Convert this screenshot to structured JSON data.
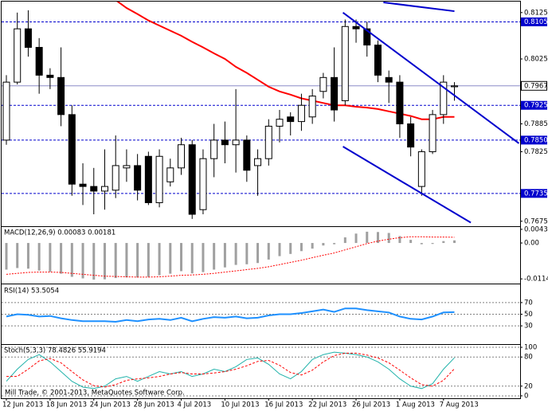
{
  "chart_data": [
    {
      "type": "candlestick",
      "categories": [
        "12 Jun 2013",
        null,
        null,
        null,
        "18 Jun 2013",
        null,
        null,
        null,
        "24 Jun 2013",
        null,
        null,
        null,
        "28 Jun 2013",
        null,
        null,
        null,
        "4 Jul 2013",
        null,
        null,
        null,
        "10 Jul 2013",
        null,
        null,
        null,
        "16 Jul 2013",
        null,
        null,
        null,
        "22 Jul 2013",
        null,
        null,
        null,
        "26 Jul 2013",
        null,
        null,
        null,
        "1 Aug 2013",
        null,
        null,
        null,
        "7 Aug 2013",
        null
      ],
      "open": [
        0.785,
        0.7975,
        0.809,
        0.805,
        0.799,
        0.7985,
        0.7905,
        0.7755,
        0.775,
        0.774,
        0.7742,
        0.779,
        0.7795,
        0.7815,
        0.7715,
        0.776,
        0.779,
        0.784,
        0.77,
        0.781,
        0.785,
        0.784,
        0.785,
        0.7795,
        0.781,
        0.788,
        0.79,
        0.789,
        0.79,
        0.7955,
        0.7985,
        0.7935,
        0.8095,
        0.809,
        0.8055,
        0.7985,
        0.7975,
        0.7885,
        0.775,
        0.7825,
        0.7905,
        0.7965
      ],
      "high": [
        0.799,
        0.8125,
        0.813,
        0.807,
        0.8005,
        0.805,
        0.7925,
        0.78,
        0.779,
        0.783,
        0.786,
        0.783,
        0.782,
        0.7825,
        0.783,
        0.781,
        0.7855,
        0.785,
        0.783,
        0.7885,
        0.789,
        0.796,
        0.786,
        0.783,
        0.7895,
        0.7915,
        0.791,
        0.795,
        0.796,
        0.7995,
        0.805,
        0.811,
        0.811,
        0.8105,
        0.8065,
        0.8,
        0.799,
        0.79,
        0.783,
        0.7915,
        0.799,
        0.7975
      ],
      "low": [
        0.784,
        0.797,
        0.803,
        0.795,
        0.796,
        0.788,
        0.773,
        0.771,
        0.769,
        0.77,
        0.7725,
        0.776,
        0.772,
        0.771,
        0.7705,
        0.775,
        0.7775,
        0.768,
        0.769,
        0.777,
        0.78,
        0.778,
        0.776,
        0.773,
        0.7795,
        0.7845,
        0.786,
        0.787,
        0.7885,
        0.794,
        0.789,
        0.7925,
        0.806,
        0.803,
        0.7975,
        0.793,
        0.7855,
        0.7815,
        0.773,
        0.782,
        0.7885,
        0.7935
      ],
      "close": [
        0.7975,
        0.809,
        0.805,
        0.799,
        0.7985,
        0.7905,
        0.7755,
        0.775,
        0.774,
        0.775,
        0.7795,
        0.7795,
        0.7742,
        0.7715,
        0.7815,
        0.779,
        0.784,
        0.769,
        0.781,
        0.785,
        0.784,
        0.785,
        0.7785,
        0.781,
        0.788,
        0.7895,
        0.789,
        0.7925,
        0.7945,
        0.7985,
        0.7915,
        0.8095,
        0.809,
        0.8055,
        0.799,
        0.7975,
        0.7885,
        0.7835,
        0.7825,
        0.7905,
        0.7975,
        0.7967
      ],
      "up_color": "#ffffff",
      "down_color": "#000000",
      "ma": {
        "color": "#ff0000",
        "values": [
          null,
          null,
          null,
          null,
          null,
          null,
          null,
          null,
          null,
          null,
          0.8152,
          0.8135,
          0.8122,
          0.8108,
          0.8097,
          0.8086,
          0.8075,
          0.8062,
          0.805,
          0.8037,
          0.8025,
          0.8008,
          0.7995,
          0.798,
          0.7965,
          0.7955,
          0.7948,
          0.794,
          0.7935,
          0.793,
          0.7925,
          0.7925,
          0.7922,
          0.792,
          0.7917,
          0.7912,
          0.7907,
          0.7902,
          0.7895,
          0.7895,
          0.79,
          0.79
        ]
      },
      "trendlines": [
        {
          "color": "#0000cd",
          "x": [
            30.8,
            46.9
          ],
          "y": [
            0.8125,
            0.7843
          ]
        },
        {
          "color": "#0000cd",
          "x": [
            30.8,
            42.5
          ],
          "y": [
            0.7836,
            0.7672
          ]
        },
        {
          "color": "#0000cd",
          "x": [
            34.5,
            41
          ],
          "y": [
            0.8147,
            0.8128
          ]
        }
      ],
      "levels": [
        {
          "value": 0.8105,
          "label": "0.8105"
        },
        {
          "value": 0.7925,
          "label": "0.7925"
        },
        {
          "value": 0.785,
          "label": "0.7850"
        },
        {
          "value": 0.7735,
          "label": "0.7735"
        }
      ],
      "level_color": "#0000cd",
      "price": {
        "value": 0.7967,
        "label": "0.7967"
      },
      "ylim": [
        0.7666,
        0.8147
      ],
      "yticks": [
        0.8125,
        0.8025,
        0.7885,
        0.7825,
        0.7675
      ],
      "footer": "Mill Trade, © 2001-2013, MetaQuotes Software Corp."
    },
    {
      "type": "macd",
      "title": "MACD(12,26,9) 0.00083 0.00181",
      "series": [
        {
          "color": "#a0a0a0",
          "values": [
            -0.0085,
            -0.008,
            -0.0082,
            -0.0088,
            -0.0092,
            -0.0098,
            -0.0108,
            -0.0113,
            -0.0117,
            -0.0116,
            -0.0112,
            -0.011,
            -0.011,
            -0.0108,
            -0.0103,
            -0.0098,
            -0.009,
            -0.0097,
            -0.0093,
            -0.0085,
            -0.0078,
            -0.007,
            -0.0068,
            -0.0064,
            -0.0053,
            -0.0042,
            -0.0035,
            -0.0026,
            -0.0018,
            -0.0008,
            -0.0004,
            0.0018,
            0.003,
            0.0036,
            0.0035,
            0.0032,
            0.0022,
            0.001,
            -0.0004,
            -0.0003,
            0.0006,
            0.00083
          ]
        },
        {
          "color": "#ff0000",
          "values": [
            -0.01,
            -0.0097,
            -0.0094,
            -0.0093,
            -0.0093,
            -0.0094,
            -0.0097,
            -0.01,
            -0.0103,
            -0.0106,
            -0.0107,
            -0.0108,
            -0.0109,
            -0.0109,
            -0.0108,
            -0.0106,
            -0.0103,
            -0.0102,
            -0.01,
            -0.0097,
            -0.0093,
            -0.0089,
            -0.0085,
            -0.0081,
            -0.0076,
            -0.0069,
            -0.0062,
            -0.0055,
            -0.0047,
            -0.0039,
            -0.0032,
            -0.0022,
            -0.0012,
            -0.0002,
            0.0006,
            0.0012,
            0.0017,
            0.002,
            0.002,
            0.0019,
            0.0019,
            0.00181
          ]
        }
      ],
      "ylim": [
        -0.0127,
        0.0051
      ],
      "yticks": [
        0.00436,
        {
          "value": 0,
          "label": "0.00"
        },
        -0.01146
      ]
    },
    {
      "type": "line",
      "title": "RSI(14) 53.5054",
      "series": [
        {
          "color": "#1e90ff",
          "values": [
            46,
            50,
            49,
            46,
            47,
            43,
            40,
            38,
            38,
            38,
            37,
            40,
            38,
            41,
            42,
            40,
            44,
            38,
            42,
            45,
            44,
            46,
            43,
            44,
            48,
            50,
            50,
            52,
            55,
            58,
            54,
            60,
            60,
            57,
            55,
            53,
            46,
            42,
            41,
            46,
            53,
            53.5054
          ]
        }
      ],
      "ylim": [
        0,
        100
      ],
      "yticks": [
        70,
        50,
        30
      ]
    },
    {
      "type": "line",
      "title": "Stoch(5,3,3) 78.4826 55.9194",
      "series": [
        {
          "color": "#20b2aa",
          "values": [
            30,
            55,
            75,
            85,
            70,
            50,
            30,
            18,
            15,
            20,
            35,
            40,
            30,
            40,
            50,
            45,
            50,
            40,
            45,
            55,
            50,
            60,
            75,
            78,
            65,
            45,
            35,
            50,
            75,
            85,
            90,
            88,
            85,
            80,
            70,
            55,
            35,
            20,
            15,
            25,
            55,
            78.4826
          ]
        },
        {
          "color": "#ff0000",
          "dashed": true,
          "values": [
            40,
            40,
            55,
            72,
            77,
            68,
            50,
            33,
            21,
            18,
            23,
            32,
            35,
            37,
            40,
            45,
            48,
            45,
            45,
            47,
            50,
            55,
            62,
            71,
            73,
            63,
            48,
            43,
            53,
            70,
            83,
            88,
            88,
            84,
            78,
            68,
            53,
            37,
            23,
            20,
            32,
            55.9194
          ]
        }
      ],
      "ylim": [
        -5,
        105
      ],
      "yticks": [
        100,
        80,
        20,
        0
      ]
    }
  ]
}
